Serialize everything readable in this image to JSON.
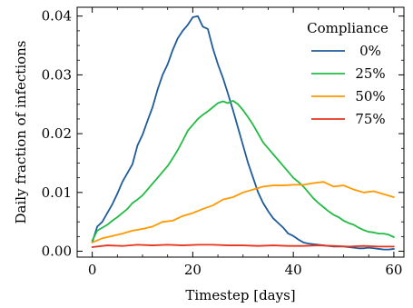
{
  "chart_data": {
    "type": "line",
    "title": "",
    "xlabel": "Timestep [days]",
    "ylabel": "Daily fraction of infections",
    "xlim": [
      -3,
      62
    ],
    "ylim": [
      -0.001,
      0.0415
    ],
    "xticks": [
      0,
      20,
      40,
      60
    ],
    "xtick_labels": [
      "0",
      "20",
      "40",
      "60"
    ],
    "yticks": [
      0.0,
      0.01,
      0.02,
      0.03,
      0.04
    ],
    "ytick_labels": [
      "0.00",
      "0.01",
      "0.02",
      "0.03",
      "0.04"
    ],
    "grid": false,
    "legend": {
      "title": "Compliance",
      "placement": "top-right"
    },
    "series": [
      {
        "name": "0%",
        "color": "#1f5c99",
        "x": [
          0,
          1,
          2,
          3,
          4,
          5,
          6,
          7,
          8,
          9,
          10,
          11,
          12,
          13,
          14,
          15,
          16,
          17,
          18,
          19,
          20,
          21,
          22,
          23,
          24,
          25,
          26,
          27,
          28,
          29,
          30,
          31,
          32,
          33,
          34,
          35,
          36,
          37,
          38,
          39,
          40,
          41,
          42,
          43,
          44,
          45,
          46,
          47,
          48,
          49,
          50,
          51,
          52,
          53,
          54,
          55,
          56,
          57,
          58,
          59,
          60
        ],
        "y": [
          0.0015,
          0.0042,
          0.005,
          0.0065,
          0.008,
          0.0098,
          0.0118,
          0.0133,
          0.0148,
          0.018,
          0.0198,
          0.0222,
          0.0245,
          0.0275,
          0.03,
          0.0318,
          0.0342,
          0.0362,
          0.0375,
          0.0385,
          0.0398,
          0.04,
          0.0382,
          0.0378,
          0.0345,
          0.0318,
          0.0295,
          0.0268,
          0.024,
          0.021,
          0.018,
          0.015,
          0.0125,
          0.01,
          0.0082,
          0.0068,
          0.0056,
          0.0048,
          0.004,
          0.003,
          0.0026,
          0.002,
          0.0015,
          0.0013,
          0.0012,
          0.0011,
          0.001,
          0.0009,
          0.0008,
          0.0008,
          0.0008,
          0.0007,
          0.0006,
          0.0005,
          0.0005,
          0.0006,
          0.0005,
          0.0004,
          0.0003,
          0.0003,
          0.0004
        ]
      },
      {
        "name": "25%",
        "color": "#22bb44",
        "x": [
          0,
          1,
          2,
          3,
          4,
          5,
          6,
          7,
          8,
          9,
          10,
          11,
          12,
          13,
          14,
          15,
          16,
          17,
          18,
          19,
          20,
          21,
          22,
          23,
          24,
          25,
          26,
          27,
          28,
          29,
          30,
          31,
          32,
          33,
          34,
          35,
          36,
          37,
          38,
          39,
          40,
          41,
          42,
          43,
          44,
          45,
          46,
          47,
          48,
          49,
          50,
          51,
          52,
          53,
          54,
          55,
          56,
          57,
          58,
          59,
          60
        ],
        "y": [
          0.0018,
          0.0035,
          0.004,
          0.0045,
          0.0052,
          0.0058,
          0.0065,
          0.0072,
          0.0082,
          0.0088,
          0.0095,
          0.0105,
          0.0115,
          0.0125,
          0.0135,
          0.0145,
          0.0158,
          0.0172,
          0.0188,
          0.0205,
          0.0215,
          0.0225,
          0.0232,
          0.0238,
          0.0245,
          0.0252,
          0.0255,
          0.0252,
          0.0256,
          0.025,
          0.024,
          0.0228,
          0.0215,
          0.02,
          0.0185,
          0.0175,
          0.0165,
          0.0155,
          0.0145,
          0.0135,
          0.0125,
          0.0118,
          0.011,
          0.01,
          0.009,
          0.0082,
          0.0075,
          0.0068,
          0.0062,
          0.0058,
          0.0052,
          0.0048,
          0.0045,
          0.004,
          0.0036,
          0.0033,
          0.0032,
          0.003,
          0.003,
          0.0028,
          0.0024
        ]
      },
      {
        "name": "50%",
        "color": "#ff9900",
        "x": [
          0,
          2,
          4,
          6,
          8,
          10,
          12,
          14,
          16,
          18,
          20,
          22,
          24,
          26,
          28,
          30,
          32,
          34,
          36,
          38,
          40,
          42,
          44,
          46,
          48,
          50,
          52,
          54,
          56,
          58,
          60
        ],
        "y": [
          0.0015,
          0.0022,
          0.0026,
          0.003,
          0.0035,
          0.0038,
          0.0042,
          0.005,
          0.0052,
          0.006,
          0.0065,
          0.0072,
          0.0078,
          0.0088,
          0.0092,
          0.01,
          0.0105,
          0.011,
          0.0112,
          0.0112,
          0.0113,
          0.0113,
          0.0116,
          0.0118,
          0.011,
          0.0112,
          0.0105,
          0.01,
          0.0102,
          0.0097,
          0.0092
        ]
      },
      {
        "name": "75%",
        "color": "#e8341c",
        "x": [
          0,
          3,
          6,
          9,
          12,
          15,
          18,
          21,
          24,
          27,
          30,
          33,
          36,
          39,
          42,
          45,
          48,
          51,
          54,
          57,
          60
        ],
        "y": [
          0.0007,
          0.001,
          0.0009,
          0.0011,
          0.001,
          0.0011,
          0.001,
          0.0011,
          0.0011,
          0.001,
          0.001,
          0.0009,
          0.001,
          0.0009,
          0.0009,
          0.001,
          0.0009,
          0.0008,
          0.0009,
          0.0008,
          0.0008
        ]
      }
    ]
  }
}
